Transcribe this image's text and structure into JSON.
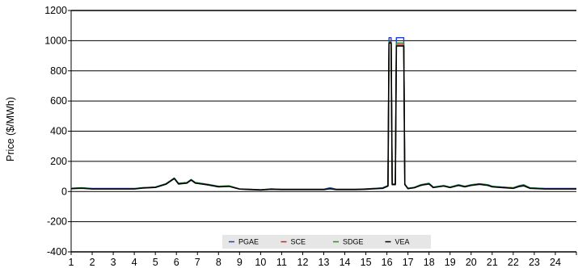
{
  "chart_data": {
    "type": "line",
    "ylabel": "Price ($/MWh)",
    "xlabel": "",
    "ylim": [
      -400,
      1200
    ],
    "yticks": [
      1200,
      1000,
      800,
      600,
      400,
      200,
      0,
      -200,
      -400
    ],
    "xlim": [
      1,
      25
    ],
    "xticks": [
      "1",
      "2",
      "3",
      "4",
      "5",
      "6",
      "7",
      "8",
      "9",
      "10",
      "11",
      "12",
      "13",
      "14",
      "15",
      "16",
      "17",
      "18",
      "19",
      "20",
      "21",
      "22",
      "23",
      "24"
    ],
    "grid": "horizontal",
    "legend_position": "bottom-center",
    "series": [
      {
        "name": "PGAE",
        "color": "#1f3bd6",
        "points": [
          [
            1,
            22
          ],
          [
            1.5,
            25
          ],
          [
            2,
            20
          ],
          [
            3,
            20
          ],
          [
            4,
            20
          ],
          [
            4.4,
            26
          ],
          [
            5,
            30
          ],
          [
            5.5,
            52
          ],
          [
            5.9,
            90
          ],
          [
            6.1,
            55
          ],
          [
            6.5,
            60
          ],
          [
            6.7,
            80
          ],
          [
            6.9,
            60
          ],
          [
            7.5,
            48
          ],
          [
            8,
            35
          ],
          [
            8.5,
            38
          ],
          [
            9,
            18
          ],
          [
            9.5,
            15
          ],
          [
            10,
            12
          ],
          [
            10.5,
            18
          ],
          [
            11,
            15
          ],
          [
            12,
            15
          ],
          [
            13,
            15
          ],
          [
            13.3,
            25
          ],
          [
            13.6,
            15
          ],
          [
            14,
            15
          ],
          [
            14.5,
            15
          ],
          [
            15,
            18
          ],
          [
            15.5,
            22
          ],
          [
            15.8,
            25
          ],
          [
            16.05,
            40
          ],
          [
            16.1,
            1020
          ],
          [
            16.2,
            1020
          ],
          [
            16.25,
            50
          ],
          [
            16.4,
            50
          ],
          [
            16.45,
            1020
          ],
          [
            16.8,
            1020
          ],
          [
            16.85,
            50
          ],
          [
            17,
            22
          ],
          [
            17.3,
            28
          ],
          [
            17.6,
            45
          ],
          [
            17.8,
            50
          ],
          [
            18,
            55
          ],
          [
            18.2,
            30
          ],
          [
            18.7,
            40
          ],
          [
            19,
            30
          ],
          [
            19.4,
            45
          ],
          [
            19.7,
            35
          ],
          [
            20,
            45
          ],
          [
            20.4,
            52
          ],
          [
            20.8,
            45
          ],
          [
            21,
            35
          ],
          [
            21.5,
            30
          ],
          [
            22,
            25
          ],
          [
            22.3,
            40
          ],
          [
            22.5,
            45
          ],
          [
            22.8,
            25
          ],
          [
            23.5,
            20
          ],
          [
            24,
            20
          ],
          [
            25,
            20
          ]
        ]
      },
      {
        "name": "SCE",
        "color": "#e31a1c",
        "points": [
          [
            1,
            20
          ],
          [
            1.5,
            23
          ],
          [
            2,
            18
          ],
          [
            3,
            18
          ],
          [
            4,
            18
          ],
          [
            4.4,
            24
          ],
          [
            5,
            28
          ],
          [
            5.5,
            50
          ],
          [
            5.9,
            88
          ],
          [
            6.1,
            52
          ],
          [
            6.5,
            58
          ],
          [
            6.7,
            78
          ],
          [
            6.9,
            58
          ],
          [
            7.5,
            46
          ],
          [
            8,
            33
          ],
          [
            8.5,
            36
          ],
          [
            9,
            17
          ],
          [
            9.5,
            14
          ],
          [
            10,
            11
          ],
          [
            10.5,
            16
          ],
          [
            11,
            14
          ],
          [
            12,
            14
          ],
          [
            13,
            14
          ],
          [
            13.3,
            20
          ],
          [
            13.6,
            14
          ],
          [
            14,
            14
          ],
          [
            14.5,
            14
          ],
          [
            15,
            16
          ],
          [
            15.5,
            20
          ],
          [
            15.8,
            22
          ],
          [
            16.05,
            38
          ],
          [
            16.1,
            990
          ],
          [
            16.2,
            990
          ],
          [
            16.25,
            48
          ],
          [
            16.4,
            48
          ],
          [
            16.45,
            975
          ],
          [
            16.8,
            975
          ],
          [
            16.85,
            48
          ],
          [
            17,
            20
          ],
          [
            17.3,
            26
          ],
          [
            17.6,
            42
          ],
          [
            17.8,
            48
          ],
          [
            18,
            52
          ],
          [
            18.2,
            28
          ],
          [
            18.7,
            38
          ],
          [
            19,
            28
          ],
          [
            19.4,
            42
          ],
          [
            19.7,
            33
          ],
          [
            20,
            42
          ],
          [
            20.4,
            50
          ],
          [
            20.8,
            42
          ],
          [
            21,
            33
          ],
          [
            21.5,
            28
          ],
          [
            22,
            23
          ],
          [
            22.3,
            36
          ],
          [
            22.5,
            40
          ],
          [
            22.8,
            23
          ],
          [
            23.5,
            18
          ],
          [
            24,
            18
          ],
          [
            25,
            18
          ]
        ]
      },
      {
        "name": "SDGE",
        "color": "#1a9a1a",
        "points": [
          [
            1,
            21
          ],
          [
            1.5,
            24
          ],
          [
            2,
            19
          ],
          [
            3,
            19
          ],
          [
            4,
            19
          ],
          [
            4.4,
            25
          ],
          [
            5,
            29
          ],
          [
            5.5,
            51
          ],
          [
            5.9,
            89
          ],
          [
            6.1,
            53
          ],
          [
            6.5,
            59
          ],
          [
            6.7,
            79
          ],
          [
            6.9,
            59
          ],
          [
            7.5,
            47
          ],
          [
            8,
            34
          ],
          [
            8.5,
            37
          ],
          [
            9,
            17
          ],
          [
            9.5,
            14
          ],
          [
            10,
            11
          ],
          [
            10.5,
            17
          ],
          [
            11,
            14
          ],
          [
            12,
            14
          ],
          [
            13,
            14
          ],
          [
            13.3,
            22
          ],
          [
            13.6,
            14
          ],
          [
            14,
            14
          ],
          [
            14.5,
            14
          ],
          [
            15,
            17
          ],
          [
            15.5,
            21
          ],
          [
            15.8,
            23
          ],
          [
            16.05,
            39
          ],
          [
            16.1,
            995
          ],
          [
            16.2,
            995
          ],
          [
            16.25,
            49
          ],
          [
            16.4,
            49
          ],
          [
            16.45,
            985
          ],
          [
            16.8,
            985
          ],
          [
            16.85,
            49
          ],
          [
            17,
            21
          ],
          [
            17.3,
            27
          ],
          [
            17.6,
            44
          ],
          [
            17.8,
            50
          ],
          [
            18,
            54
          ],
          [
            18.2,
            29
          ],
          [
            18.7,
            39
          ],
          [
            19,
            29
          ],
          [
            19.4,
            44
          ],
          [
            19.7,
            34
          ],
          [
            20,
            44
          ],
          [
            20.4,
            51
          ],
          [
            20.8,
            44
          ],
          [
            21,
            34
          ],
          [
            21.5,
            29
          ],
          [
            22,
            24
          ],
          [
            22.3,
            38
          ],
          [
            22.5,
            44
          ],
          [
            22.8,
            24
          ],
          [
            23.5,
            19
          ],
          [
            24,
            19
          ],
          [
            25,
            19
          ]
        ]
      },
      {
        "name": "VEA",
        "color": "#000000",
        "points": [
          [
            1,
            19
          ],
          [
            1.5,
            22
          ],
          [
            2,
            17
          ],
          [
            3,
            17
          ],
          [
            4,
            17
          ],
          [
            4.4,
            23
          ],
          [
            5,
            27
          ],
          [
            5.5,
            48
          ],
          [
            5.9,
            86
          ],
          [
            6.1,
            50
          ],
          [
            6.5,
            56
          ],
          [
            6.7,
            76
          ],
          [
            6.9,
            56
          ],
          [
            7.5,
            44
          ],
          [
            8,
            31
          ],
          [
            8.5,
            34
          ],
          [
            9,
            16
          ],
          [
            9.5,
            13
          ],
          [
            10,
            10
          ],
          [
            10.5,
            15
          ],
          [
            11,
            13
          ],
          [
            12,
            13
          ],
          [
            13,
            13
          ],
          [
            13.3,
            18
          ],
          [
            13.6,
            13
          ],
          [
            14,
            13
          ],
          [
            14.5,
            13
          ],
          [
            15,
            15
          ],
          [
            15.5,
            19
          ],
          [
            15.8,
            21
          ],
          [
            16.05,
            36
          ],
          [
            16.1,
            985
          ],
          [
            16.2,
            985
          ],
          [
            16.25,
            46
          ],
          [
            16.4,
            46
          ],
          [
            16.45,
            965
          ],
          [
            16.8,
            965
          ],
          [
            16.85,
            46
          ],
          [
            17,
            19
          ],
          [
            17.3,
            25
          ],
          [
            17.6,
            40
          ],
          [
            17.8,
            46
          ],
          [
            18,
            50
          ],
          [
            18.2,
            26
          ],
          [
            18.7,
            36
          ],
          [
            19,
            26
          ],
          [
            19.4,
            40
          ],
          [
            19.7,
            31
          ],
          [
            20,
            40
          ],
          [
            20.4,
            48
          ],
          [
            20.8,
            40
          ],
          [
            21,
            31
          ],
          [
            21.5,
            26
          ],
          [
            22,
            21
          ],
          [
            22.3,
            34
          ],
          [
            22.5,
            38
          ],
          [
            22.8,
            21
          ],
          [
            23.5,
            17
          ],
          [
            24,
            17
          ],
          [
            25,
            17
          ]
        ]
      }
    ]
  }
}
